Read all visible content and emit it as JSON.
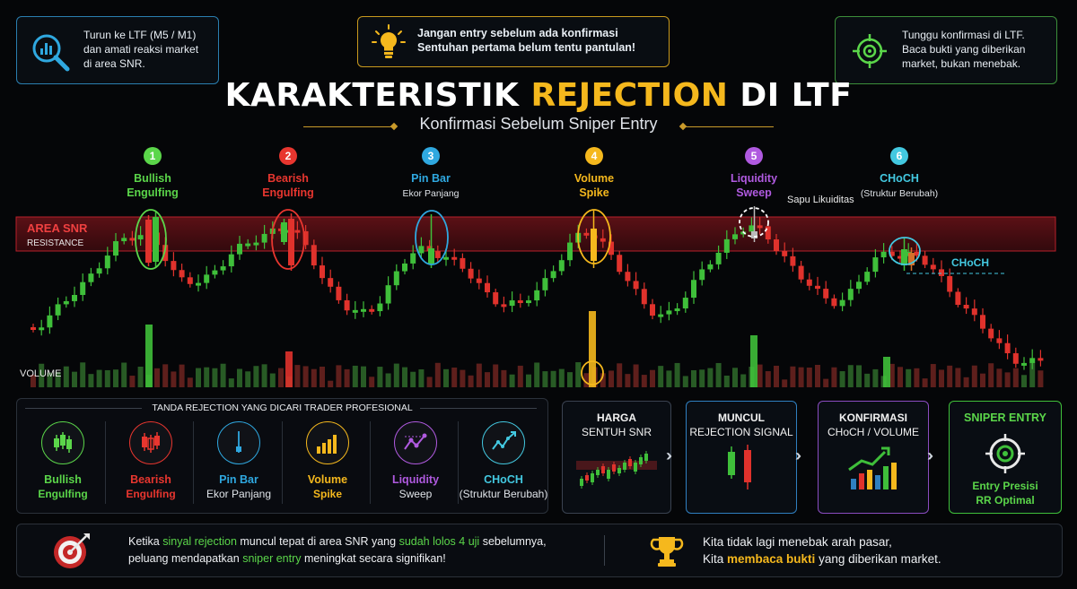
{
  "tips": {
    "left": {
      "lines": [
        "Turun ke LTF (M5 / M1)",
        "dan amati reaksi market",
        "di area SNR."
      ],
      "icon": "magnifier-chart-icon",
      "color": "#2fa8e0"
    },
    "center": {
      "lines": [
        "Jangan entry sebelum ada konfirmasi",
        "Sentuhan pertama belum tentu pantulan!"
      ],
      "icon": "lightbulb-icon",
      "color": "#f5b81d"
    },
    "right": {
      "lines": [
        "Tunggu konfirmasi di LTF.",
        "Baca bukti yang diberikan",
        "market, bukan menebak."
      ],
      "icon": "crosshair-icon",
      "color": "#5bd64a"
    }
  },
  "title": {
    "part1": "KARAKTERISTIK ",
    "highlight": "REJECTION",
    "part2": " DI LTF",
    "subtitle": "Konfirmasi Sebelum Sniper Entry"
  },
  "markers": [
    {
      "num": "1",
      "line1": "Bullish",
      "line2": "Engulfing",
      "sub": "",
      "color": "#5bd64a"
    },
    {
      "num": "2",
      "line1": "Bearish",
      "line2": "Engulfing",
      "sub": "",
      "color": "#e8362f"
    },
    {
      "num": "3",
      "line1": "Pin Bar",
      "line2": "",
      "sub": "Ekor Panjang",
      "color": "#2fa8e0"
    },
    {
      "num": "4",
      "line1": "Volume",
      "line2": "Spike",
      "sub": "",
      "color": "#f5b81d"
    },
    {
      "num": "5",
      "line1": "Liquidity",
      "line2": "Sweep",
      "sub": "",
      "color": "#b05ae0"
    },
    {
      "num": "6",
      "line1": "CHoCH",
      "line2": "",
      "sub": "(Struktur Berubah)",
      "color": "#43c8e0"
    }
  ],
  "chart_labels": {
    "snr_area": "AREA SNR",
    "snr_type": "RESISTANCE",
    "sweep_note": "Sapu Likuiditas",
    "choch_tag": "CHoCH",
    "volume": "VOLUME"
  },
  "colors": {
    "bull": "#3fbf3a",
    "bear": "#e0322c",
    "gold": "#f5b81d",
    "snr": "#c0202a"
  },
  "signs": {
    "title": "TANDA REJECTION YANG DICARI TRADER PROFESIONAL",
    "items": [
      {
        "line1": "Bullish",
        "line2": "Engulfing",
        "icon": "bullish-candles-icon",
        "color": "#5bd64a",
        "sub_color": "#5bd64a"
      },
      {
        "line1": "Bearish",
        "line2": "Engulfing",
        "icon": "bearish-candles-icon",
        "color": "#e8362f",
        "sub_color": "#e8362f"
      },
      {
        "line1": "Pin Bar",
        "line2": "Ekor Panjang",
        "icon": "pin-bar-icon",
        "color": "#2fa8e0",
        "sub_color": "#dfe3e8"
      },
      {
        "line1": "Volume",
        "line2": "Spike",
        "icon": "volume-bars-icon",
        "color": "#f5b81d",
        "sub_color": "#f5b81d"
      },
      {
        "line1": "Liquidity",
        "line2": "Sweep",
        "icon": "liquidity-sweep-icon",
        "color": "#b05ae0",
        "sub_color": "#dfe3e8"
      },
      {
        "line1": "CHoCH",
        "line2": "(Struktur Berubah)",
        "icon": "choch-chart-icon",
        "color": "#43c8e0",
        "sub_color": "#dfe3e8"
      }
    ]
  },
  "steps": [
    {
      "line1": "HARGA",
      "line2": "SENTUH SNR",
      "icon": "mini-chart-icon",
      "color": "#3a4250"
    },
    {
      "line1": "MUNCUL",
      "line2": "REJECTION SIGNAL",
      "icon": "two-candles-icon",
      "color": "#2f7fc0"
    },
    {
      "line1": "KONFIRMASI",
      "line2": "CHoCH / VOLUME",
      "icon": "growth-bars-icon",
      "color": "#8a4cc0"
    },
    {
      "line1": "SNIPER ENTRY",
      "line2": "Entry Presisi",
      "line3": "RR Optimal",
      "icon": "target-icon",
      "color": "#3fbf3a"
    }
  ],
  "bottom": {
    "left": {
      "icon": "dart-target-icon",
      "l1a": "Ketika ",
      "l1b": "sinyal rejection",
      "l1c": " muncul tepat di area SNR yang ",
      "l1d": "sudah lolos 4 uji",
      "l1e": " sebelumnya,",
      "l2a": "peluang mendapatkan ",
      "l2b": "sniper entry",
      "l2c": " meningkat secara signifikan!"
    },
    "right": {
      "icon": "trophy-icon",
      "l1": "Kita tidak lagi menebak arah pasar,",
      "l2a": "Kita ",
      "l2b": "membaca bukti",
      "l2c": " yang diberikan market."
    }
  }
}
